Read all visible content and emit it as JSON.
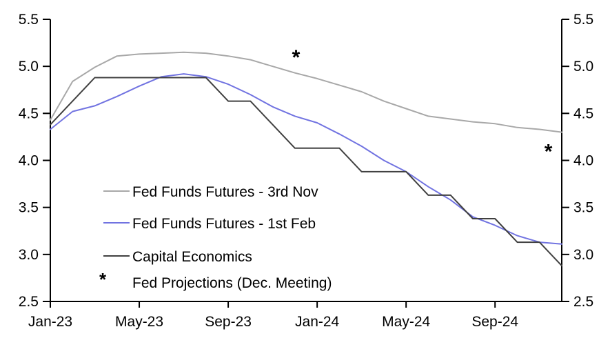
{
  "chart_data": {
    "type": "line",
    "title": "",
    "xlabel": "",
    "ylabel": "",
    "x": [
      "Jan-23",
      "Feb-23",
      "Mar-23",
      "Apr-23",
      "May-23",
      "Jun-23",
      "Jul-23",
      "Aug-23",
      "Sep-23",
      "Oct-23",
      "Nov-23",
      "Dec-23",
      "Jan-24",
      "Feb-24",
      "Mar-24",
      "Apr-24",
      "May-24",
      "Jun-24",
      "Jul-24",
      "Aug-24",
      "Sep-24",
      "Oct-24",
      "Nov-24",
      "Dec-24"
    ],
    "x_tick_labels": [
      "Jan-23",
      "May-23",
      "Sep-23",
      "Jan-24",
      "May-24",
      "Sep-24"
    ],
    "x_tick_positions": [
      0,
      4,
      8,
      12,
      16,
      20
    ],
    "ylim": [
      2.5,
      5.5
    ],
    "y_ticks": [
      2.5,
      3.0,
      3.5,
      4.0,
      4.5,
      5.0,
      5.5
    ],
    "y_tick_labels": [
      "2.5",
      "3.0",
      "3.5",
      "4.0",
      "4.5",
      "5.0",
      "5.5"
    ],
    "dual_y_axis": true,
    "grid": false,
    "legend_position": "inside-lower-left",
    "series": [
      {
        "name": "Fed Funds Futures - 3rd Nov",
        "color": "#a8a8a8",
        "values": [
          4.43,
          4.84,
          4.99,
          5.11,
          5.13,
          5.14,
          5.15,
          5.14,
          5.11,
          5.07,
          5.0,
          4.93,
          4.87,
          4.8,
          4.73,
          4.63,
          4.55,
          4.47,
          4.44,
          4.41,
          4.39,
          4.35,
          4.33,
          4.3
        ]
      },
      {
        "name": "Fed Funds Futures - 1st Feb",
        "color": "#7173e1",
        "values": [
          4.33,
          4.52,
          4.58,
          4.68,
          4.79,
          4.89,
          4.92,
          4.89,
          4.81,
          4.7,
          4.57,
          4.47,
          4.4,
          4.28,
          4.15,
          4.0,
          3.88,
          3.72,
          3.58,
          3.4,
          3.31,
          3.2,
          3.13,
          3.11
        ]
      },
      {
        "name": "Capital Economics",
        "color": "#404040",
        "values": [
          4.38,
          4.63,
          4.88,
          4.88,
          4.88,
          4.88,
          4.88,
          4.88,
          4.63,
          4.63,
          4.38,
          4.13,
          4.13,
          4.13,
          3.88,
          3.88,
          3.88,
          3.63,
          3.63,
          3.38,
          3.38,
          3.13,
          3.13,
          2.88
        ]
      }
    ],
    "markers": {
      "label": "Fed Projections (Dec. Meeting)",
      "symbol": "*",
      "color": "#000000",
      "points": [
        {
          "label": "Dec-23",
          "x_index": 11.05,
          "value": 5.125
        },
        {
          "label": "Dec-24",
          "x_index": 22.4,
          "value": 4.125
        }
      ]
    }
  }
}
